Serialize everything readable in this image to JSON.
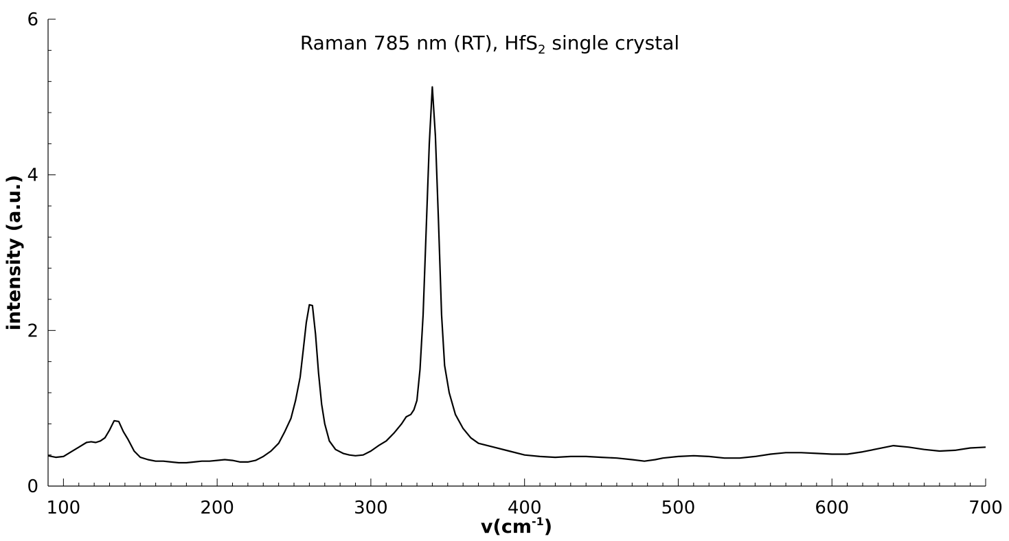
{
  "chart_data": {
    "type": "line",
    "title": {
      "main": "Raman 785 nm (RT), HfS",
      "sub": "2",
      "rest": " single crystal"
    },
    "xlabel": {
      "main": "v(cm",
      "sup": "-1",
      "rest": ")"
    },
    "ylabel": "intensity (a.u.)",
    "xlim": [
      90,
      700
    ],
    "ylim": [
      0,
      6
    ],
    "xticks": [
      "100",
      "200",
      "300",
      "400",
      "500",
      "600",
      "700"
    ],
    "yticks": [
      "0",
      "2",
      "4",
      "6"
    ],
    "grid": false,
    "legend": "none",
    "line_color": "#000000",
    "series": [
      {
        "x": [
          90,
          95,
          100,
          105,
          110,
          115,
          118,
          121,
          124,
          127,
          130,
          133,
          136,
          139,
          142,
          146,
          150,
          155,
          160,
          165,
          170,
          175,
          180,
          185,
          190,
          195,
          200,
          205,
          210,
          215,
          220,
          225,
          230,
          235,
          240,
          244,
          248,
          251,
          254,
          256,
          258,
          260,
          262,
          264,
          266,
          268,
          270,
          273,
          277,
          282,
          286,
          290,
          295,
          300,
          305,
          310,
          315,
          320,
          323,
          326,
          328,
          330,
          332,
          334,
          336,
          338,
          340,
          342,
          344,
          346,
          348,
          351,
          355,
          360,
          365,
          370,
          380,
          390,
          400,
          410,
          420,
          430,
          440,
          450,
          460,
          470,
          478,
          485,
          490,
          500,
          510,
          520,
          530,
          540,
          550,
          560,
          570,
          580,
          590,
          600,
          610,
          620,
          630,
          640,
          650,
          660,
          670,
          680,
          690,
          700
        ],
        "y": [
          0.39,
          0.37,
          0.38,
          0.44,
          0.5,
          0.56,
          0.57,
          0.56,
          0.58,
          0.62,
          0.72,
          0.84,
          0.83,
          0.7,
          0.6,
          0.45,
          0.37,
          0.34,
          0.32,
          0.32,
          0.31,
          0.3,
          0.3,
          0.31,
          0.32,
          0.32,
          0.33,
          0.34,
          0.33,
          0.31,
          0.31,
          0.33,
          0.38,
          0.45,
          0.55,
          0.7,
          0.87,
          1.1,
          1.4,
          1.75,
          2.1,
          2.33,
          2.32,
          1.95,
          1.45,
          1.05,
          0.8,
          0.58,
          0.47,
          0.42,
          0.4,
          0.39,
          0.4,
          0.45,
          0.52,
          0.58,
          0.68,
          0.8,
          0.89,
          0.92,
          0.98,
          1.1,
          1.5,
          2.2,
          3.3,
          4.4,
          5.13,
          4.5,
          3.4,
          2.2,
          1.55,
          1.2,
          0.92,
          0.74,
          0.62,
          0.55,
          0.5,
          0.45,
          0.4,
          0.38,
          0.37,
          0.38,
          0.38,
          0.37,
          0.36,
          0.34,
          0.32,
          0.34,
          0.36,
          0.38,
          0.39,
          0.38,
          0.36,
          0.36,
          0.38,
          0.41,
          0.43,
          0.43,
          0.42,
          0.41,
          0.41,
          0.44,
          0.48,
          0.52,
          0.5,
          0.47,
          0.45,
          0.46,
          0.49,
          0.5
        ]
      }
    ]
  }
}
